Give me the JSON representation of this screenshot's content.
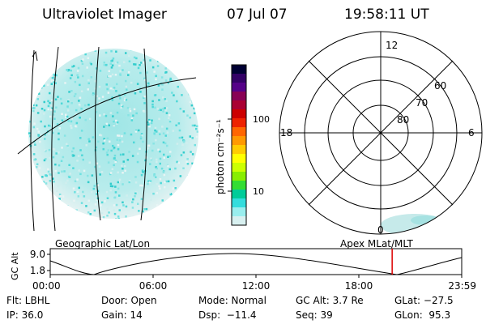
{
  "header": {
    "instrument": "Ultraviolet Imager",
    "date": "07 Jul 07",
    "time": "19:58:11 UT"
  },
  "colorbar": {
    "label": "photon cm⁻²s⁻¹",
    "ticks": [
      "100",
      "10"
    ],
    "colors": [
      "#000033",
      "#330066",
      "#550088",
      "#880055",
      "#aa0033",
      "#cc0000",
      "#ee2200",
      "#ff6600",
      "#ff9900",
      "#ffcc00",
      "#ffff00",
      "#ccff00",
      "#88ee00",
      "#33dd33",
      "#00cc99",
      "#33dddd",
      "#99eeee",
      "#d8f0f0"
    ]
  },
  "polar": {
    "labels": {
      "top": "12",
      "right": "6",
      "left": "18",
      "bottom": "0"
    },
    "rings": [
      "60",
      "70",
      "80"
    ]
  },
  "timeline": {
    "left_title": "Geographic Lat/Lon",
    "right_title": "Apex MLat/MLT",
    "ylabel": "GC Alt",
    "y_top": "9.0",
    "y_bottom": "1.8",
    "ticks": [
      "00:00",
      "06:00",
      "12:00",
      "18:00",
      "23:59"
    ],
    "marker_fraction": 0.831,
    "marker_color": "#dd0000"
  },
  "info": {
    "row1": [
      "Flt: LBHL",
      "Door: Open",
      "Mode: Normal",
      "GC Alt: 3.7 Re",
      "GLat: −27.5"
    ],
    "row2": [
      "IP: 36.0",
      "Gain: 14",
      "Dsp:  −11.4",
      "Seq: 39",
      "GLon:  95.3"
    ]
  }
}
